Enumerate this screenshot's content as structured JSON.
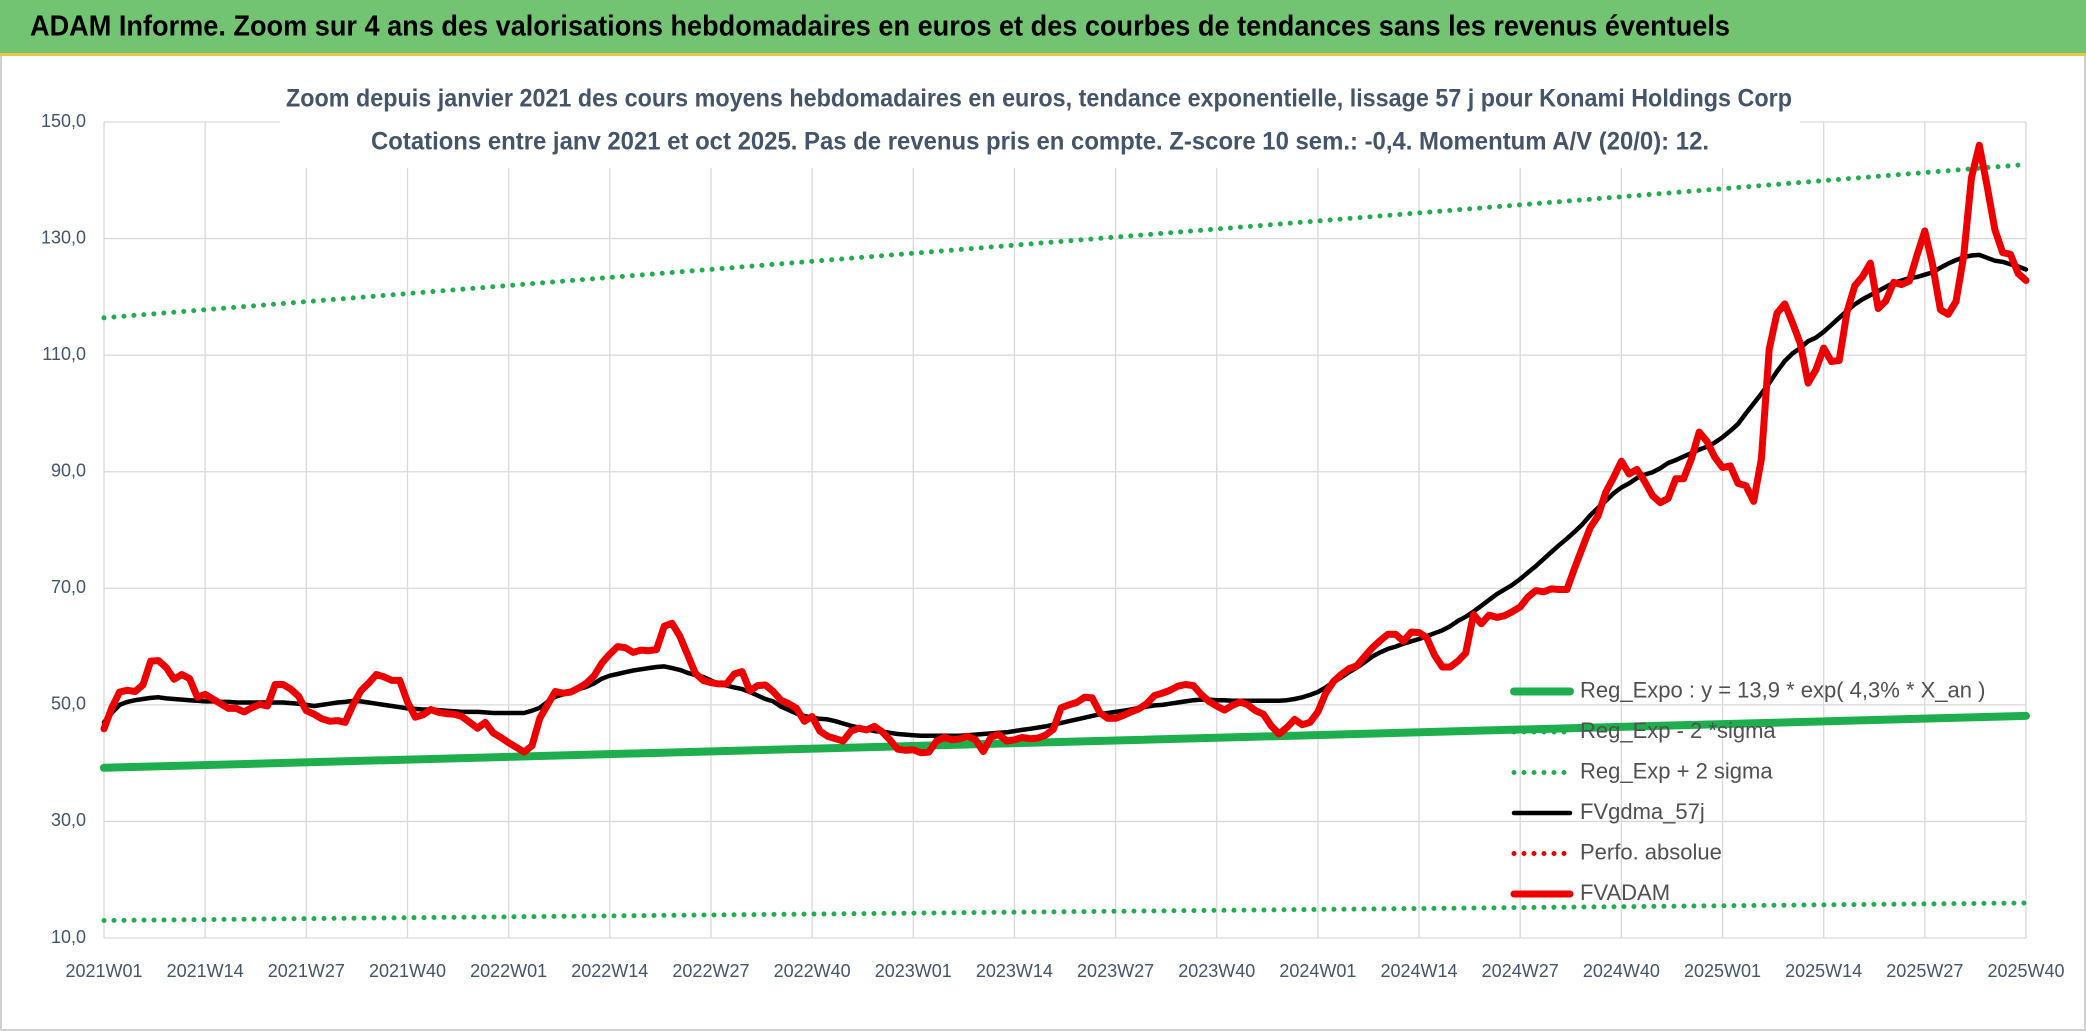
{
  "chart_data": {
    "type": "line",
    "title": "ADAM Informe. Zoom sur 4 ans des valorisations hebdomadaires en euros et des courbes de tendances sans les revenus éventuels",
    "subtitle": [
      "Zoom depuis janvier 2021 des cours moyens hebdomadaires en euros, tendance exponentielle, lissage 57 j pour Konami Holdings Corp",
      "Cotations entre janv 2021 et oct 2025. Pas de revenus pris en compte. Z-score 10 sem.: -0,4. Momentum A/V (20/0): 12."
    ],
    "categories": [
      "2021W01",
      null,
      null,
      null,
      null,
      null,
      null,
      null,
      null,
      null,
      null,
      null,
      null,
      "2021W14",
      null,
      null,
      null,
      null,
      null,
      null,
      null,
      null,
      null,
      null,
      null,
      null,
      "2021W27",
      null,
      null,
      null,
      null,
      null,
      null,
      null,
      null,
      null,
      null,
      null,
      null,
      "2021W40",
      null,
      null,
      null,
      null,
      null,
      null,
      null,
      null,
      null,
      null,
      null,
      null,
      "2022W01",
      null,
      null,
      null,
      null,
      null,
      null,
      null,
      null,
      null,
      null,
      null,
      null,
      "2022W14",
      null,
      null,
      null,
      null,
      null,
      null,
      null,
      null,
      null,
      null,
      null,
      null,
      "2022W27",
      null,
      null,
      null,
      null,
      null,
      null,
      null,
      null,
      null,
      null,
      null,
      null,
      "2022W40",
      null,
      null,
      null,
      null,
      null,
      null,
      null,
      null,
      null,
      null,
      null,
      null,
      "2023W01",
      null,
      null,
      null,
      null,
      null,
      null,
      null,
      null,
      null,
      null,
      null,
      null,
      "2023W14",
      null,
      null,
      null,
      null,
      null,
      null,
      null,
      null,
      null,
      null,
      null,
      null,
      "2023W27",
      null,
      null,
      null,
      null,
      null,
      null,
      null,
      null,
      null,
      null,
      null,
      null,
      "2023W40",
      null,
      null,
      null,
      null,
      null,
      null,
      null,
      null,
      null,
      null,
      null,
      null,
      "2024W01",
      null,
      null,
      null,
      null,
      null,
      null,
      null,
      null,
      null,
      null,
      null,
      null,
      "2024W14",
      null,
      null,
      null,
      null,
      null,
      null,
      null,
      null,
      null,
      null,
      null,
      null,
      "2024W27",
      null,
      null,
      null,
      null,
      null,
      null,
      null,
      null,
      null,
      null,
      null,
      null,
      "2024W40",
      null,
      null,
      null,
      null,
      null,
      null,
      null,
      null,
      null,
      null,
      null,
      null,
      "2025W01",
      null,
      null,
      null,
      null,
      null,
      null,
      null,
      null,
      null,
      null,
      null,
      null,
      "2025W14",
      null,
      null,
      null,
      null,
      null,
      null,
      null,
      null,
      null,
      null,
      null,
      null,
      "2025W27",
      null,
      null,
      null,
      null,
      null,
      null,
      null,
      null,
      null,
      null,
      null,
      null,
      "2025W40"
    ],
    "series": [
      {
        "name": "Reg_Expo : y = 13,9 * exp( 4,3% * X_an )",
        "color": "#1fae4e",
        "style": "solid",
        "weight": "thick",
        "x": [
          "2021W01",
          "2025W40"
        ],
        "values": [
          39.2,
          48.1
        ]
      },
      {
        "name": "Reg_Exp - 2 *sigma",
        "color": "#1fae4e",
        "style": "dotted",
        "weight": "normal",
        "x": [
          "2021W01",
          "2025W40"
        ],
        "values": [
          13.0,
          16.0
        ]
      },
      {
        "name": "Reg_Exp + 2 sigma",
        "color": "#1fae4e",
        "style": "dotted",
        "weight": "normal",
        "x": [
          "2021W01",
          "2025W40"
        ],
        "values": [
          116.4,
          142.7
        ]
      },
      {
        "name": "FVgdma_57j",
        "color": "#000000",
        "style": "solid",
        "weight": "normal",
        "values": [
          47.0,
          48.6,
          50.0,
          50.5,
          50.8,
          51.0,
          51.2,
          51.3,
          51.1,
          51.0,
          50.9,
          50.8,
          50.7,
          50.6,
          50.6,
          50.5,
          50.5,
          50.4,
          50.4,
          50.4,
          50.4,
          50.4,
          50.4,
          50.4,
          50.3,
          50.2,
          50.0,
          49.8,
          50.0,
          50.2,
          50.4,
          50.5,
          50.7,
          50.6,
          50.4,
          50.2,
          50.0,
          49.8,
          49.6,
          49.4,
          49.3,
          49.2,
          49.2,
          49.1,
          49.0,
          48.9,
          48.8,
          48.8,
          48.8,
          48.7,
          48.6,
          48.6,
          48.6,
          48.6,
          48.6,
          49.0,
          49.5,
          50.5,
          51.4,
          51.8,
          52.2,
          52.7,
          53.1,
          53.7,
          54.5,
          55.0,
          55.3,
          55.6,
          55.9,
          56.1,
          56.3,
          56.5,
          56.6,
          56.3,
          56.0,
          55.5,
          55.1,
          54.8,
          54.2,
          53.6,
          53.3,
          53.0,
          52.7,
          52.2,
          51.6,
          51.0,
          50.6,
          49.7,
          49.1,
          48.5,
          48.1,
          47.8,
          47.6,
          47.5,
          47.2,
          46.8,
          46.4,
          46.1,
          45.8,
          45.5,
          45.4,
          45.2,
          45.0,
          44.9,
          44.8,
          44.7,
          44.7,
          44.7,
          44.7,
          44.7,
          44.7,
          44.8,
          44.9,
          45.0,
          45.1,
          45.2,
          45.3,
          45.5,
          45.7,
          45.9,
          46.1,
          46.3,
          46.6,
          46.9,
          47.2,
          47.5,
          47.8,
          48.1,
          48.4,
          48.6,
          48.8,
          49.0,
          49.2,
          49.5,
          49.7,
          49.9,
          50.0,
          50.2,
          50.4,
          50.6,
          50.8,
          50.9,
          50.9,
          50.8,
          50.8,
          50.7,
          50.7,
          50.7,
          50.7,
          50.7,
          50.7,
          50.7,
          50.8,
          51.0,
          51.3,
          51.7,
          52.2,
          53.0,
          53.9,
          54.7,
          55.6,
          56.4,
          57.3,
          58.3,
          59.0,
          59.6,
          60.0,
          60.5,
          60.9,
          61.3,
          61.8,
          62.3,
          62.8,
          63.5,
          64.4,
          65.1,
          66.0,
          67.0,
          68.0,
          69.0,
          69.8,
          70.6,
          71.6,
          72.7,
          73.8,
          75.0,
          76.2,
          77.4,
          78.5,
          79.7,
          81.0,
          82.5,
          83.8,
          85.0,
          86.3,
          87.3,
          88.0,
          88.9,
          89.5,
          89.9,
          90.6,
          91.5,
          92.0,
          92.6,
          93.2,
          93.8,
          94.3,
          95.0,
          95.9,
          97.0,
          98.2,
          100.0,
          101.7,
          103.4,
          105.2,
          107.2,
          109.0,
          110.3,
          111.2,
          112.4,
          113.0,
          114.0,
          115.2,
          116.4,
          117.6,
          118.7,
          119.6,
          120.3,
          121.0,
          121.7,
          122.4,
          122.8,
          123.2,
          123.4,
          123.8,
          124.2,
          125.0,
          125.7,
          126.3,
          126.8,
          127.1,
          127.2,
          126.7,
          126.2,
          126.0,
          125.6,
          125.2,
          124.7
        ]
      },
      {
        "name": "Perfo. absolue",
        "color": "#e60000",
        "style": "dotted",
        "weight": "normal"
      },
      {
        "name": "FVADAM",
        "color": "#ee0000",
        "style": "solid",
        "weight": "thick",
        "values": [
          45.9,
          49.5,
          52.2,
          52.5,
          52.3,
          53.4,
          57.5,
          57.6,
          56.4,
          54.4,
          55.2,
          54.5,
          51.3,
          51.8,
          51.0,
          50.2,
          49.4,
          49.4,
          48.8,
          49.5,
          50.1,
          49.8,
          53.5,
          53.5,
          52.7,
          51.5,
          49.0,
          48.4,
          47.6,
          47.2,
          47.3,
          47.0,
          50.0,
          52.4,
          53.7,
          55.2,
          54.8,
          54.2,
          54.2,
          50.5,
          47.9,
          48.3,
          49.2,
          48.7,
          48.5,
          48.4,
          48.0,
          47.0,
          46.0,
          47.0,
          45.2,
          44.4,
          43.5,
          42.7,
          41.9,
          43.0,
          47.7,
          50.0,
          52.3,
          52.0,
          52.2,
          52.9,
          53.7,
          55.0,
          57.2,
          58.7,
          60.0,
          59.8,
          59.0,
          59.4,
          59.3,
          59.5,
          63.5,
          64.0,
          61.8,
          58.6,
          55.4,
          54.2,
          53.8,
          53.6,
          53.6,
          55.3,
          55.7,
          52.4,
          53.3,
          53.4,
          52.3,
          50.8,
          50.2,
          49.4,
          47.2,
          48.0,
          45.5,
          44.6,
          44.2,
          43.8,
          45.5,
          46.0,
          45.7,
          46.3,
          45.4,
          44.0,
          42.4,
          42.2,
          42.3,
          41.8,
          41.9,
          43.8,
          44.4,
          44.0,
          44.2,
          44.6,
          44.0,
          42.0,
          44.5,
          44.9,
          43.8,
          44.0,
          44.4,
          44.2,
          44.3,
          44.8,
          45.8,
          49.5,
          50.0,
          50.4,
          51.3,
          51.2,
          48.6,
          47.7,
          47.7,
          48.2,
          48.8,
          49.3,
          50.2,
          51.6,
          52.0,
          52.5,
          53.2,
          53.5,
          53.3,
          51.8,
          50.6,
          49.8,
          49.1,
          49.9,
          50.5,
          50.0,
          49.0,
          48.4,
          46.4,
          45.0,
          46.1,
          47.5,
          46.6,
          47.0,
          48.8,
          52.0,
          54.0,
          55.2,
          56.2,
          56.7,
          58.3,
          59.8,
          61.0,
          62.1,
          62.1,
          60.9,
          62.5,
          62.4,
          61.5,
          58.5,
          56.5,
          56.5,
          57.5,
          58.9,
          65.5,
          63.9,
          65.4,
          65.0,
          65.3,
          66.0,
          66.8,
          68.5,
          69.6,
          69.4,
          69.9,
          69.8,
          69.8,
          73.5,
          77.0,
          80.4,
          82.4,
          86.5,
          89.0,
          91.8,
          89.6,
          90.4,
          88.3,
          85.9,
          84.7,
          85.4,
          88.8,
          88.8,
          92.2,
          96.8,
          95.2,
          92.5,
          90.7,
          91.0,
          88.0,
          87.6,
          84.9,
          92.2,
          111.0,
          117.2,
          118.8,
          115.5,
          112.0,
          105.2,
          107.5,
          111.2,
          108.9,
          109.1,
          117.4,
          121.9,
          123.5,
          125.8,
          118.0,
          119.3,
          122.5,
          122.1,
          122.7,
          127.2,
          131.3,
          125.5,
          117.8,
          117.0,
          119.2,
          127.0,
          140.5,
          146.0,
          139.0,
          131.5,
          127.6,
          127.3,
          124.0,
          122.8
        ]
      }
    ],
    "ylim": [
      10,
      150
    ],
    "yticks": [
      {
        "value": 10,
        "label": "10,0"
      },
      {
        "value": 30,
        "label": "30,0"
      },
      {
        "value": 50,
        "label": "50,0"
      },
      {
        "value": 70,
        "label": "70,0"
      },
      {
        "value": 90,
        "label": "90,0"
      },
      {
        "value": 110,
        "label": "110,0"
      },
      {
        "value": 130,
        "label": "130,0"
      },
      {
        "value": 150,
        "label": "150,0"
      }
    ],
    "grid": true,
    "legend": "lower right"
  }
}
